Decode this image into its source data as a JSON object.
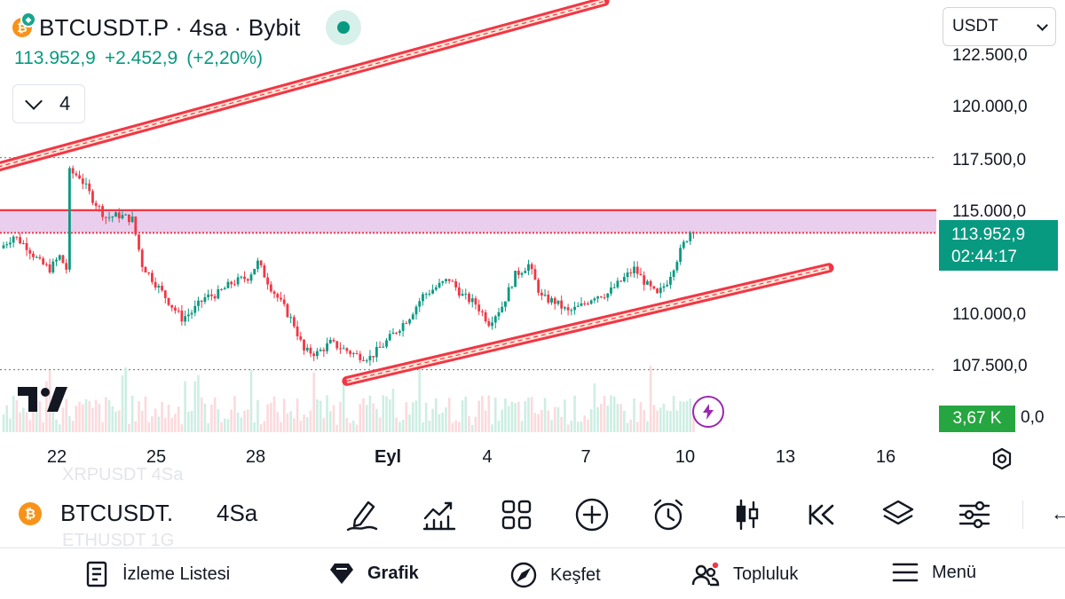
{
  "header": {
    "symbol": "BTCUSDT.P · 4sa · Bybit",
    "last_price": "113.952,9",
    "change": "+2.452,9",
    "change_pct": "(+2,20%)",
    "indicator_count": "4",
    "badge_letter": "₿"
  },
  "currency_select": {
    "value": "USDT"
  },
  "price_axis": {
    "ticks": [
      "122.500,0",
      "120.000,0",
      "117.500,0",
      "115.000,0",
      "110.000,0",
      "107.500,0"
    ],
    "current_price": "113.952,9",
    "countdown": "02:44:17",
    "volume_value": "3,67 K",
    "volume_axis": "0,0"
  },
  "time_axis": {
    "labels": [
      "22",
      "25",
      "28",
      "Eyl",
      "4",
      "7",
      "10",
      "13",
      "16"
    ]
  },
  "chart_data": {
    "type": "candlestick",
    "price_range": [
      106500,
      123000
    ],
    "last_close": 113952.9,
    "resistance_zone": [
      113950,
      115050
    ],
    "reference_levels": [
      117600,
      107300
    ],
    "trendlines": [
      {
        "name": "upper-channel",
        "from": {
          "bar": -4,
          "price": 117050
        },
        "to": {
          "bar": 182,
          "price": 125200
        }
      },
      {
        "name": "lower-support",
        "from": {
          "bar": 104,
          "price": 106750
        },
        "to": {
          "bar": 250,
          "price": 112250
        }
      }
    ],
    "colors": {
      "up": "#089981",
      "down": "#f23645",
      "trendline": "#f23645",
      "zone": "#e1bee7",
      "volume_up": "#cdeee3",
      "volume_down": "#fbdadd"
    },
    "grid": false
  },
  "toolbar": {
    "symbol": "BTCUSDT.",
    "interval": "4Sa",
    "ghost_above": "XRPUSDT   4Sa",
    "ghost_below": "ETHUSDT   1G"
  },
  "bottom_nav": {
    "watchlist": "İzleme Listesi",
    "chart": "Grafik",
    "explore": "Keşfet",
    "community": "Topluluk",
    "menu": "Menü"
  }
}
